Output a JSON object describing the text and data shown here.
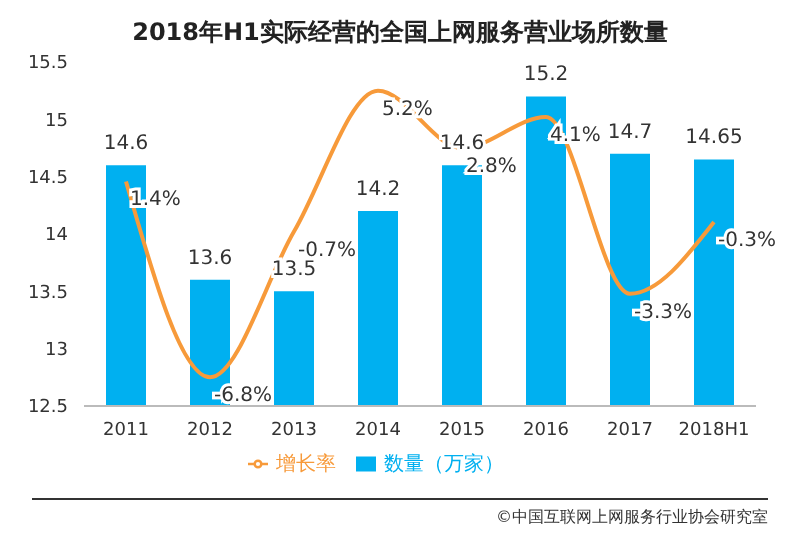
{
  "chart_data": {
    "type": "bar",
    "title": "2018年H1实际经营的全国上网服务营业场所数量",
    "categories": [
      "2011",
      "2012",
      "2013",
      "2014",
      "2015",
      "2016",
      "2017",
      "2018H1"
    ],
    "series": [
      {
        "name": "数量（万家）",
        "color": "#00b0f0",
        "values": [
          14.6,
          13.6,
          13.5,
          14.2,
          14.6,
          15.2,
          14.7,
          14.65
        ],
        "value_labels": [
          "14.6",
          "13.6",
          "13.5",
          "14.2",
          "14.6",
          "15.2",
          "14.7",
          "14.65"
        ]
      },
      {
        "name": "增长率",
        "type": "line",
        "axis": "y2",
        "color": "#f79a3a",
        "values": [
          1.4,
          -6.8,
          -0.7,
          5.2,
          2.8,
          4.1,
          -3.3,
          -0.3
        ],
        "value_labels": [
          "1.4%",
          "-6.8%",
          "-0.7%",
          "5.2%",
          "2.8%",
          "4.1%",
          "-3.3%",
          "-0.3%"
        ]
      }
    ],
    "ylim": [
      12.5,
      15.5
    ],
    "yticks": [
      12.5,
      13,
      13.5,
      14,
      14.5,
      15,
      15.5
    ],
    "grid": false,
    "legend": "bottom",
    "marker": "none",
    "line_style": "solid",
    "annotations": [
      "©中国互联网上网服务行业协会研究室"
    ]
  }
}
